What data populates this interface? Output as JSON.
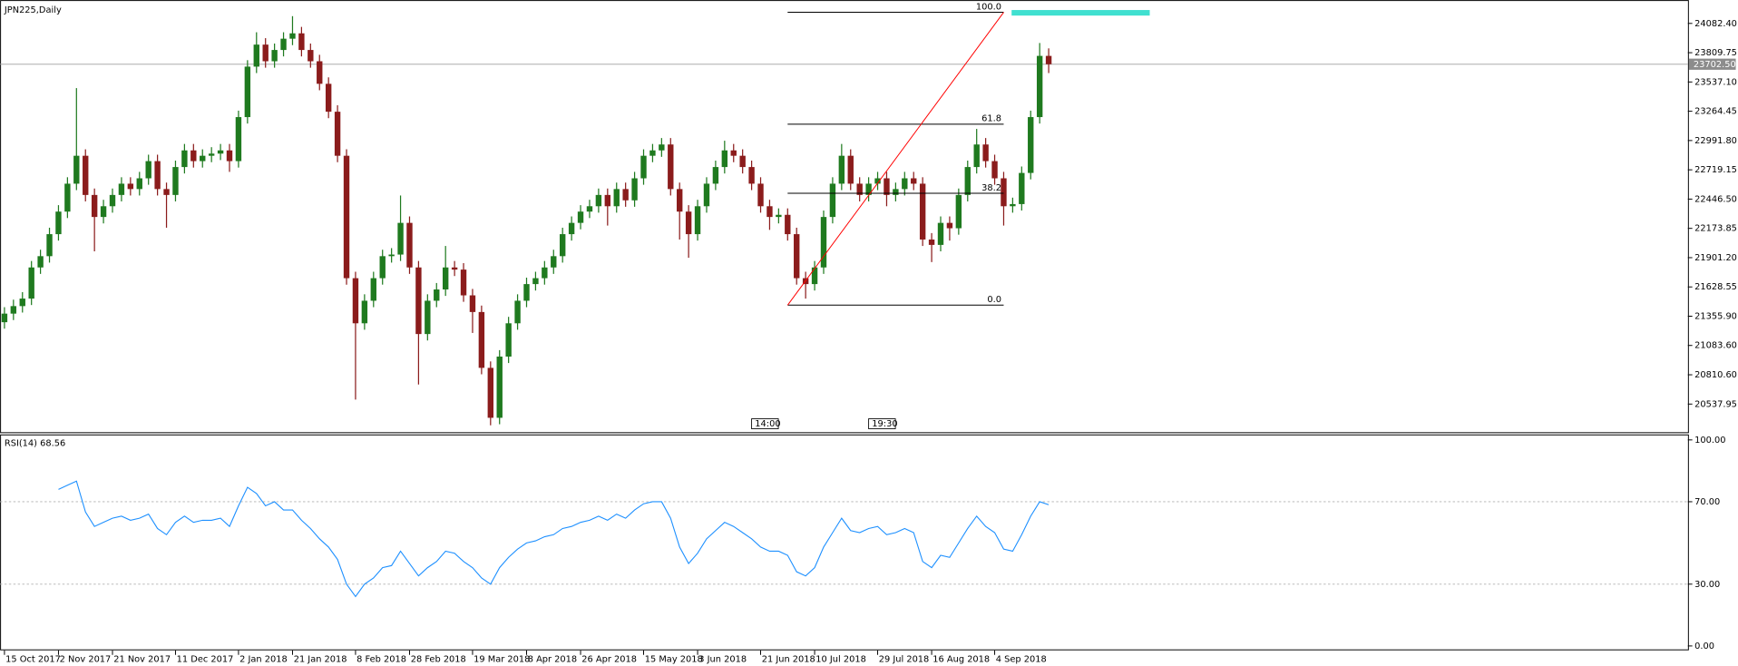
{
  "chart_data": [
    {
      "type": "candlestick",
      "title": "JPN225,Daily",
      "categories": [
        "15 Oct 2017",
        null,
        null,
        null,
        null,
        null,
        "2 Nov 2017",
        null,
        null,
        null,
        null,
        null,
        "21 Nov 2017",
        null,
        null,
        null,
        null,
        null,
        null,
        "11 Dec 2017",
        null,
        null,
        null,
        null,
        null,
        null,
        "2 Jan 2018",
        null,
        null,
        null,
        null,
        null,
        "21 Jan 2018",
        null,
        null,
        null,
        null,
        null,
        null,
        "8 Feb 2018",
        null,
        null,
        null,
        null,
        null,
        "28 Feb 2018",
        null,
        null,
        null,
        null,
        null,
        null,
        "19 Mar 2018",
        null,
        null,
        null,
        null,
        null,
        "8 Apr 2018",
        null,
        null,
        null,
        null,
        null,
        "26 Apr 2018",
        null,
        null,
        null,
        null,
        null,
        null,
        "15 May 2018",
        null,
        null,
        null,
        null,
        null,
        "3 Jun 2018",
        null,
        null,
        null,
        null,
        null,
        null,
        "21 Jun 2018",
        null,
        null,
        null,
        null,
        null,
        "10 Jul 2018",
        null,
        null,
        null,
        null,
        null,
        null,
        "29 Jul 2018",
        null,
        null,
        null,
        null,
        null,
        "16 Aug 2018",
        null,
        null,
        null,
        null,
        null,
        null,
        "4 Sep 2018",
        null,
        null,
        null,
        null,
        null,
        null
      ],
      "open": [
        21300,
        21380,
        21450,
        21520,
        21810,
        21915,
        22120,
        22330,
        22590,
        22850,
        22485,
        22280,
        22380,
        22485,
        22590,
        22540,
        22640,
        22800,
        22540,
        22485,
        22745,
        22900,
        22800,
        22850,
        22870,
        22900,
        22800,
        23210,
        23680,
        23885,
        23730,
        23835,
        23940,
        23990,
        23835,
        23730,
        23520,
        23260,
        22850,
        21710,
        21290,
        21500,
        21710,
        21915,
        21930,
        22225,
        21810,
        21190,
        21500,
        21605,
        21810,
        21790,
        21550,
        21395,
        20875,
        20410,
        20980,
        21290,
        21500,
        21655,
        21710,
        21810,
        21915,
        22120,
        22225,
        22330,
        22380,
        22485,
        22380,
        22540,
        22435,
        22640,
        22850,
        22900,
        22955,
        22540,
        22330,
        22120,
        22380,
        22590,
        22745,
        22900,
        22850,
        22745,
        22590,
        22380,
        22280,
        22300,
        22120,
        21710,
        21655,
        21810,
        22280,
        22590,
        22850,
        22590,
        22485,
        22590,
        22640,
        22485,
        22540,
        22640,
        22590,
        22070,
        22020,
        22225,
        22175,
        22485,
        22745,
        22955,
        22800,
        22640,
        22380,
        22400,
        22690,
        23210,
        23780
      ],
      "high": [
        21440,
        21510,
        21580,
        21870,
        21975,
        22180,
        22390,
        22650,
        23480,
        22910,
        22545,
        22440,
        22545,
        22650,
        22650,
        22700,
        22860,
        22860,
        22600,
        22805,
        22960,
        22960,
        22910,
        22930,
        22960,
        22960,
        23270,
        23740,
        24000,
        23945,
        23895,
        24000,
        24150,
        24050,
        23895,
        23790,
        23580,
        23320,
        22910,
        21770,
        21560,
        21770,
        21975,
        21990,
        22480,
        22285,
        21870,
        21560,
        21665,
        22010,
        21870,
        21850,
        21610,
        21455,
        20935,
        21040,
        21350,
        21560,
        21715,
        21770,
        21870,
        21975,
        22180,
        22285,
        22390,
        22440,
        22545,
        22545,
        22600,
        22600,
        22700,
        22910,
        22960,
        23015,
        23015,
        22600,
        22390,
        22440,
        22650,
        22805,
        22990,
        22960,
        22910,
        22805,
        22650,
        22440,
        22360,
        22360,
        22180,
        21770,
        21870,
        22340,
        22650,
        22960,
        22910,
        22650,
        22650,
        22700,
        22700,
        22600,
        22700,
        22700,
        22650,
        22130,
        22285,
        22285,
        22545,
        22805,
        23100,
        23015,
        22860,
        22700,
        22460,
        22750,
        23270,
        23900,
        23850
      ],
      "low": [
        21240,
        21320,
        21390,
        21460,
        21750,
        21855,
        22060,
        22270,
        22530,
        22425,
        21960,
        22220,
        22320,
        22425,
        22480,
        22480,
        22580,
        22480,
        22180,
        22425,
        22685,
        22740,
        22740,
        22790,
        22810,
        22700,
        22740,
        23150,
        23620,
        23670,
        23670,
        23775,
        23880,
        23775,
        23670,
        23460,
        23200,
        22790,
        21650,
        20580,
        21230,
        21440,
        21650,
        21855,
        21870,
        21750,
        20720,
        21130,
        21440,
        21545,
        21730,
        21490,
        21200,
        20815,
        20340,
        20350,
        20920,
        21230,
        21440,
        21595,
        21650,
        21750,
        21855,
        22060,
        22165,
        22270,
        22320,
        22200,
        22320,
        22375,
        22375,
        22580,
        22790,
        22840,
        22480,
        22070,
        21900,
        22060,
        22320,
        22530,
        22685,
        22790,
        22685,
        22530,
        22320,
        22160,
        22220,
        22060,
        21650,
        21520,
        21595,
        21750,
        22220,
        22530,
        22530,
        22425,
        22425,
        22530,
        22380,
        22425,
        22480,
        22530,
        22010,
        21860,
        21960,
        22060,
        22115,
        22425,
        22685,
        22740,
        22580,
        22200,
        22320,
        22340,
        22630,
        23150,
        23620
      ],
      "close": [
        21380,
        21450,
        21520,
        21810,
        21915,
        22120,
        22330,
        22590,
        22850,
        22485,
        22280,
        22380,
        22485,
        22590,
        22540,
        22640,
        22800,
        22540,
        22485,
        22745,
        22900,
        22800,
        22850,
        22870,
        22900,
        22800,
        23210,
        23680,
        23885,
        23730,
        23835,
        23940,
        23990,
        23835,
        23730,
        23520,
        23260,
        22850,
        21710,
        21290,
        21500,
        21710,
        21915,
        21930,
        22225,
        21810,
        21190,
        21500,
        21605,
        21810,
        21790,
        21550,
        21395,
        20875,
        20410,
        20980,
        21290,
        21500,
        21655,
        21710,
        21810,
        21915,
        22120,
        22225,
        22330,
        22380,
        22485,
        22380,
        22540,
        22435,
        22640,
        22850,
        22900,
        22955,
        22540,
        22330,
        22120,
        22380,
        22590,
        22745,
        22900,
        22850,
        22745,
        22590,
        22380,
        22280,
        22300,
        22120,
        21710,
        21655,
        21810,
        22280,
        22590,
        22850,
        22590,
        22485,
        22590,
        22640,
        22485,
        22540,
        22640,
        22590,
        22070,
        22020,
        22225,
        22175,
        22485,
        22745,
        22955,
        22800,
        22640,
        22380,
        22400,
        22690,
        23210,
        23780,
        23702.5
      ],
      "bull_color": "#1f7a1f",
      "bear_color": "#8b1c1c",
      "ylim": [
        20276.6,
        24290
      ],
      "yticks": [
        {
          "value": 24082.4,
          "label": "24082.40"
        },
        {
          "value": 23809.75,
          "label": "23809.75"
        },
        {
          "value": 23537.1,
          "label": "23537.10"
        },
        {
          "value": 23264.45,
          "label": "23264.45"
        },
        {
          "value": 22991.8,
          "label": "22991.80"
        },
        {
          "value": 22719.15,
          "label": "22719.15"
        },
        {
          "value": 22446.5,
          "label": "22446.50"
        },
        {
          "value": 22173.85,
          "label": "22173.85"
        },
        {
          "value": 21901.2,
          "label": "21901.20"
        },
        {
          "value": 21628.55,
          "label": "21628.55"
        },
        {
          "value": 21355.9,
          "label": "21355.90"
        },
        {
          "value": 21083.6,
          "label": "21083.60"
        },
        {
          "value": 20810.6,
          "label": "20810.60"
        },
        {
          "value": 20537.95,
          "label": "20537.95"
        }
      ],
      "grid": false,
      "last_price": {
        "value": 23702.5,
        "label": "23702.50"
      },
      "fibonacci": {
        "low": 21459,
        "high": 24186,
        "start": 87,
        "end": 111,
        "color": "#ff0000",
        "levels": [
          {
            "value": 100,
            "label": "100.0"
          },
          61.8,
          38.2,
          {
            "value": 0,
            "label": "0.0"
          }
        ]
      },
      "events": [
        {
          "label": "14:00",
          "index": 83
        },
        {
          "label": "19:30",
          "index": 96
        }
      ]
    },
    {
      "type": "line",
      "title": "RSI(14) 68.56",
      "values": [
        null,
        null,
        null,
        null,
        null,
        null,
        76,
        78,
        80,
        65,
        58,
        60,
        62,
        63,
        61,
        62,
        64,
        57,
        54,
        60,
        63,
        60,
        61,
        61,
        62,
        58,
        68,
        77,
        74,
        68,
        70,
        66,
        66,
        61,
        57,
        52,
        48,
        42,
        30,
        24,
        30,
        33,
        38,
        39,
        46,
        40,
        34,
        38,
        41,
        46,
        45,
        41,
        38,
        33,
        30,
        38,
        43,
        47,
        50,
        51,
        53,
        54,
        57,
        58,
        60,
        61,
        63,
        61,
        64,
        62,
        66,
        69,
        70,
        70,
        62,
        48,
        40,
        45,
        52,
        56,
        60,
        58,
        55,
        52,
        48,
        46,
        46,
        44,
        36,
        34,
        38,
        48,
        55,
        62,
        56,
        55,
        57,
        58,
        54,
        55,
        57,
        55,
        41,
        38,
        44,
        43,
        50,
        57,
        63,
        58,
        55,
        47,
        46,
        54,
        63,
        70,
        68.56
      ],
      "color": "#1e90ff",
      "ylim": [
        0,
        100
      ],
      "yticks": [
        {
          "value": 100,
          "label": "100.00"
        },
        {
          "value": 70,
          "label": "70.00"
        },
        {
          "value": 30,
          "label": "30.00"
        },
        {
          "value": 0,
          "label": "0.00"
        }
      ],
      "grid": "dashed"
    }
  ]
}
